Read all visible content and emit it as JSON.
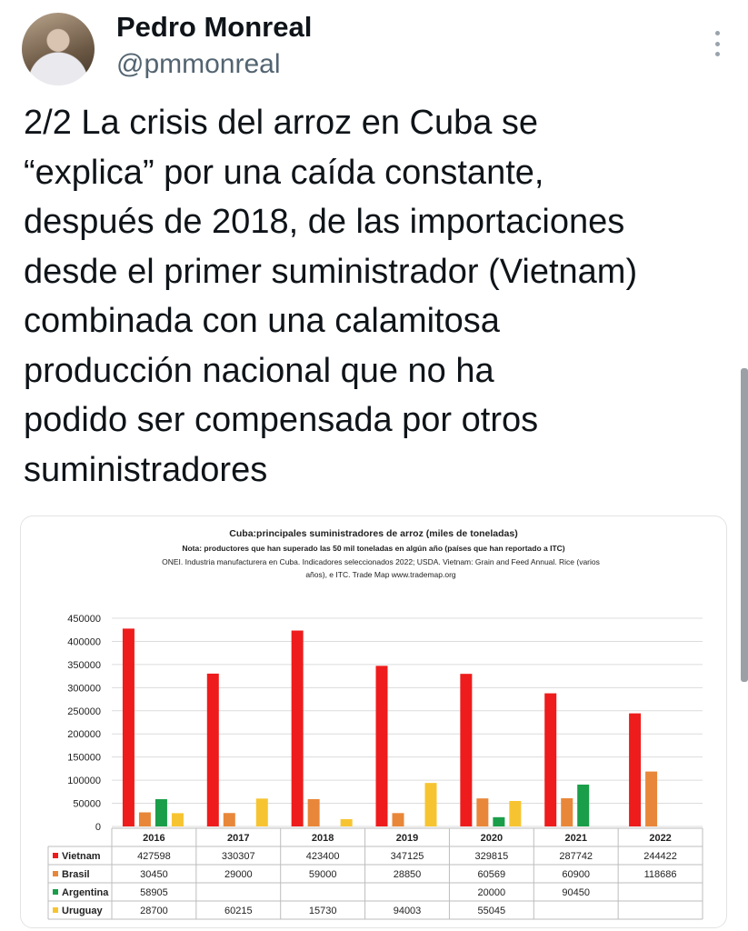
{
  "author": {
    "name": "Pedro Monreal",
    "handle": "@pmmonreal"
  },
  "icons": {
    "more": "more-vertical-icon",
    "avatar": "avatar-photo"
  },
  "tweet": {
    "lines": [
      "2/2 La crisis del arroz en Cuba se",
      "“explica” por una caída constante,",
      "después de 2018, de las importaciones",
      "desde el primer suministrador (Vietnam)",
      "combinada con una calamitosa",
      "producción nacional que no ha",
      "podido ser compensada por otros",
      "suministradores"
    ]
  },
  "chart_data": {
    "type": "bar",
    "title": "Cuba:principales suministradores de arroz (miles de toneladas)",
    "note": "Nota: productores que han superado las 50 mil toneladas en algún año (países que han reportado a ITC)",
    "source_line1": "ONEI. Industria manufacturera en Cuba. Indicadores seleccionados 2022; USDA. Vietnam: Grain and Feed Annual. Rice (varios",
    "source_line2": "años), e ITC. Trade Map www.trademap.org",
    "categories": [
      "2016",
      "2017",
      "2018",
      "2019",
      "2020",
      "2021",
      "2022"
    ],
    "ylim": [
      0,
      450000
    ],
    "yticks": [
      "0",
      "50000",
      "100000",
      "150000",
      "200000",
      "250000",
      "300000",
      "350000",
      "400000",
      "450000"
    ],
    "grid": true,
    "legend": "table-below",
    "series": [
      {
        "name": "Vietnam",
        "color": "#ee1c1c",
        "values": [
          427598,
          330307,
          423400,
          347125,
          329815,
          287742,
          244422
        ],
        "labels": [
          "427598",
          "330307",
          "423400",
          "347125",
          "329815",
          "287742",
          "244422"
        ]
      },
      {
        "name": "Brasil",
        "color": "#e8873a",
        "values": [
          30450,
          29000,
          59000,
          28850,
          60569,
          60900,
          118686
        ],
        "labels": [
          "30450",
          "29000",
          "59000",
          "28850",
          "60569",
          "60900",
          "118686"
        ]
      },
      {
        "name": "Argentina",
        "color": "#1a9e49",
        "values": [
          58905,
          null,
          null,
          null,
          20000,
          90450,
          null
        ],
        "labels": [
          "58905",
          "",
          "",
          "",
          "20000",
          "90450",
          ""
        ]
      },
      {
        "name": "Uruguay",
        "color": "#f7c431",
        "values": [
          28700,
          60215,
          15730,
          94003,
          55045,
          null,
          null
        ],
        "labels": [
          "28700",
          "60215",
          "15730",
          "94003",
          "55045",
          "",
          ""
        ]
      }
    ]
  }
}
